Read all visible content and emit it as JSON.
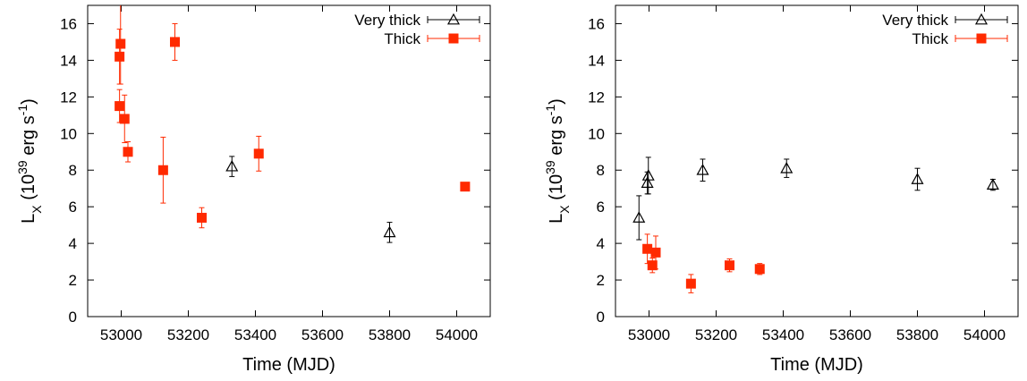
{
  "chart_data": [
    {
      "type": "scatter",
      "xlabel": "Time (MJD)",
      "ylabel_base": "L",
      "ylabel_sub": "X",
      "ylabel_pre": " (10",
      "ylabel_exp": "39",
      "ylabel_unit": " erg s",
      "ylabel_unit_exp": "-1",
      "ylabel_post": ")",
      "xlim": [
        52900,
        54100
      ],
      "ylim": [
        0,
        17
      ],
      "xticks": [
        53000,
        53200,
        53400,
        53600,
        53800,
        54000
      ],
      "yticks": [
        0,
        2,
        4,
        6,
        8,
        10,
        12,
        14,
        16
      ],
      "legend_position": "top-right",
      "series": [
        {
          "name": "Very thick",
          "marker": "open-triangle",
          "color": "#000000",
          "points": [
            {
              "x": 53330,
              "y": 8.2,
              "err": 0.55
            },
            {
              "x": 53800,
              "y": 4.6,
              "err": 0.55
            }
          ]
        },
        {
          "name": "Thick",
          "marker": "filled-square",
          "color": "#ff2a00",
          "points": [
            {
              "x": 52995,
              "y": 11.5,
              "err": 0.9
            },
            {
              "x": 52995,
              "y": 14.2,
              "err": 1.5
            },
            {
              "x": 52998,
              "y": 14.9,
              "err": 2.2
            },
            {
              "x": 53010,
              "y": 10.8,
              "err": 1.3
            },
            {
              "x": 53020,
              "y": 9.0,
              "err": 0.55
            },
            {
              "x": 53125,
              "y": 8.0,
              "err": 1.8
            },
            {
              "x": 53160,
              "y": 15.0,
              "err": 1.0
            },
            {
              "x": 53240,
              "y": 5.4,
              "err": 0.55
            },
            {
              "x": 53410,
              "y": 8.9,
              "err": 0.95
            },
            {
              "x": 54025,
              "y": 7.1,
              "err": 0.15
            }
          ]
        }
      ]
    },
    {
      "type": "scatter",
      "xlabel": "Time (MJD)",
      "ylabel_base": "L",
      "ylabel_sub": "X",
      "ylabel_pre": " (10",
      "ylabel_exp": "39",
      "ylabel_unit": " erg s",
      "ylabel_unit_exp": "-1",
      "ylabel_post": ")",
      "xlim": [
        52900,
        54100
      ],
      "ylim": [
        0,
        17
      ],
      "xticks": [
        53000,
        53200,
        53400,
        53600,
        53800,
        54000
      ],
      "yticks": [
        0,
        2,
        4,
        6,
        8,
        10,
        12,
        14,
        16
      ],
      "legend_position": "top-right",
      "series": [
        {
          "name": "Very thick",
          "marker": "open-triangle",
          "color": "#000000",
          "points": [
            {
              "x": 52970,
              "y": 5.4,
              "err": 1.2
            },
            {
              "x": 52995,
              "y": 7.3,
              "err": 0.6
            },
            {
              "x": 52998,
              "y": 7.7,
              "err": 1.0
            },
            {
              "x": 53160,
              "y": 8.0,
              "err": 0.6
            },
            {
              "x": 53410,
              "y": 8.1,
              "err": 0.5
            },
            {
              "x": 53800,
              "y": 7.5,
              "err": 0.6
            },
            {
              "x": 54025,
              "y": 7.2,
              "err": 0.3
            }
          ]
        },
        {
          "name": "Thick",
          "marker": "filled-square",
          "color": "#ff2a00",
          "points": [
            {
              "x": 52995,
              "y": 3.7,
              "err": 0.8
            },
            {
              "x": 53010,
              "y": 2.8,
              "err": 0.4
            },
            {
              "x": 53020,
              "y": 3.5,
              "err": 0.9
            },
            {
              "x": 53125,
              "y": 1.8,
              "err": 0.5
            },
            {
              "x": 53240,
              "y": 2.8,
              "err": 0.35
            },
            {
              "x": 53330,
              "y": 2.6,
              "err": 0.3
            }
          ]
        }
      ]
    }
  ]
}
